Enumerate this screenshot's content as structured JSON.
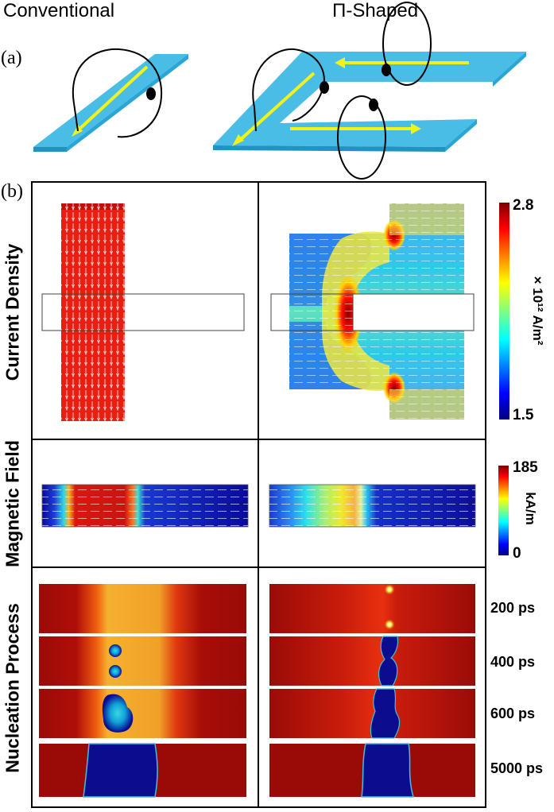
{
  "headers": {
    "left": "Conventional",
    "right": "Π-Shaped"
  },
  "panel_labels": {
    "a": "(a)",
    "b": "(b)"
  },
  "rows": {
    "current": "Current Density",
    "field": "Magnetic Field",
    "nucleation": "Nucleation Process"
  },
  "colorbar_current": {
    "max": "2.8",
    "min": "1.5",
    "unit": "× 10¹² A/m²"
  },
  "colorbar_field": {
    "max": "185",
    "min": "0",
    "unit": "kA/m"
  },
  "times": [
    "200 ps",
    "400 ps",
    "600 ps",
    "5000 ps"
  ],
  "colors": {
    "strip": "#49bde6",
    "strip_side": "#1f93c2",
    "arrow": "#f2f21a",
    "hot": "#8c0b08",
    "cold": "#0a0a8c"
  }
}
